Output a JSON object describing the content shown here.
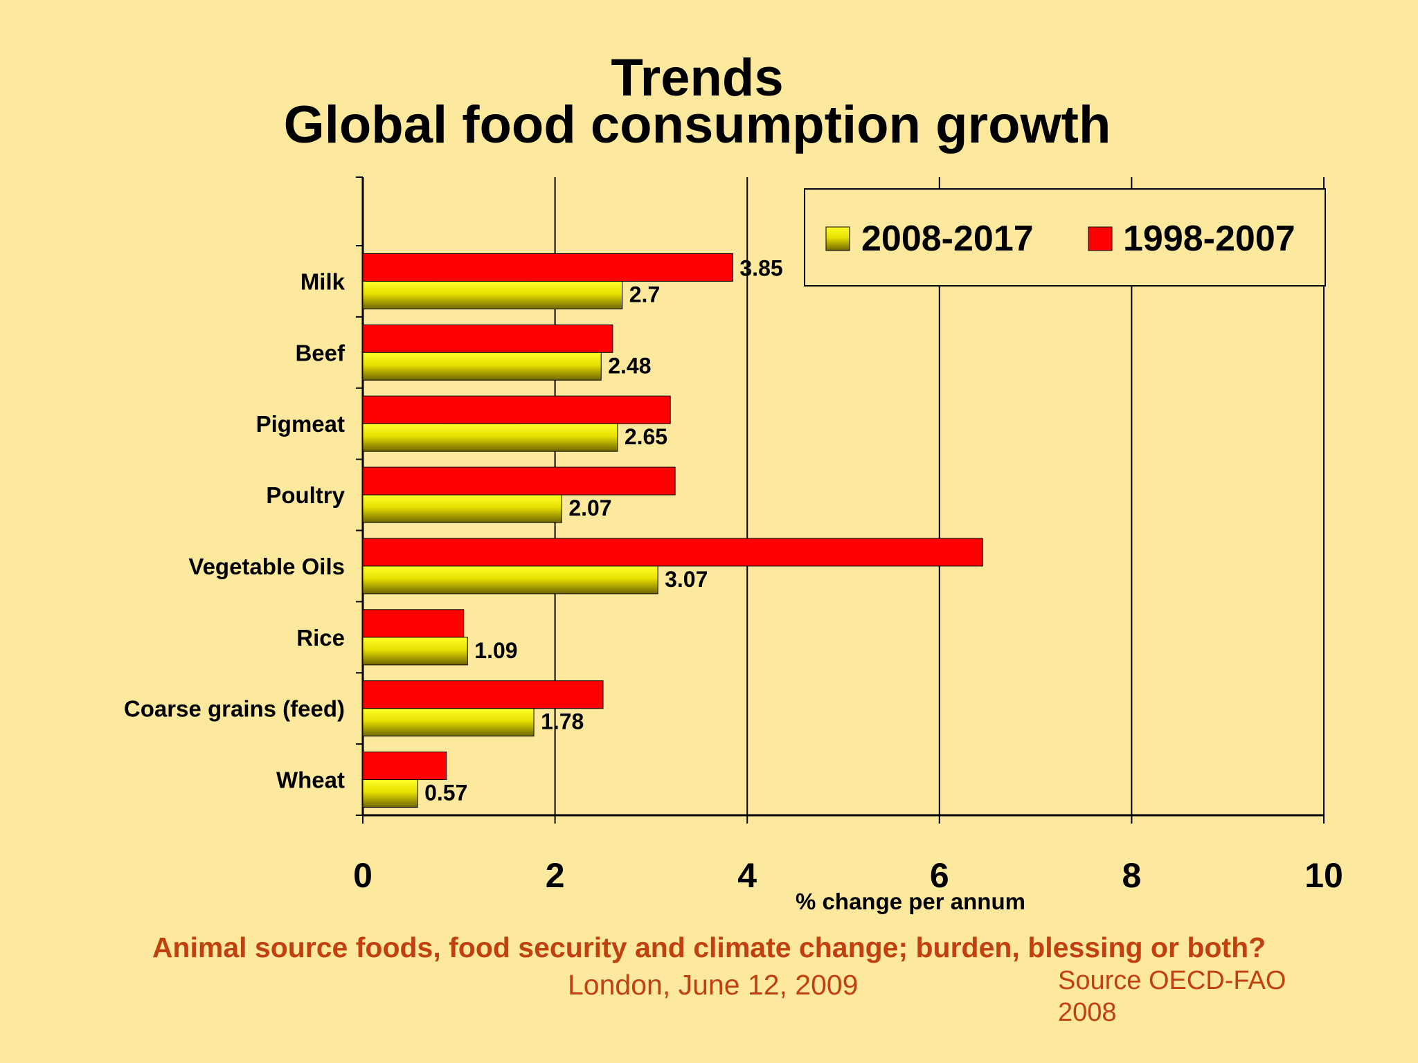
{
  "slide": {
    "title_line1": "Trends",
    "title_line2": "Global food consumption growth",
    "footer_title": "Animal source foods, food security and climate change; burden, blessing or both?",
    "footer_date": "London, June 12, 2009",
    "footer_source": "Source OECD-FAO 2008"
  },
  "chart_data": {
    "type": "bar",
    "orientation": "horizontal",
    "categories": [
      "Milk",
      "Beef",
      "Pigmeat",
      "Poultry",
      "Vegetable Oils",
      "Rice",
      "Coarse grains (feed)",
      "Wheat"
    ],
    "series": [
      {
        "name": "1998-2007",
        "color": "#ff0000",
        "values": [
          3.85,
          2.6,
          3.2,
          3.25,
          6.45,
          1.05,
          2.5,
          0.87
        ],
        "value_labels": [
          "3.85",
          "",
          "",
          "",
          "",
          "",
          "",
          ""
        ]
      },
      {
        "name": "2008-2017",
        "color": "#ffff00",
        "values": [
          2.7,
          2.48,
          2.65,
          2.07,
          3.07,
          1.09,
          1.78,
          0.57
        ],
        "value_labels": [
          "2.7",
          "2.48",
          "2.65",
          "2.07",
          "3.07",
          "1.09",
          "1.78",
          "0.57"
        ]
      }
    ],
    "xlabel": "% change per annum",
    "xlim": [
      0,
      10
    ],
    "xticks": [
      "0",
      "2",
      "4",
      "6",
      "8",
      "10"
    ],
    "grid": true,
    "legend_position": "top-right",
    "legend_order": [
      "2008-2017",
      "1998-2007"
    ]
  }
}
